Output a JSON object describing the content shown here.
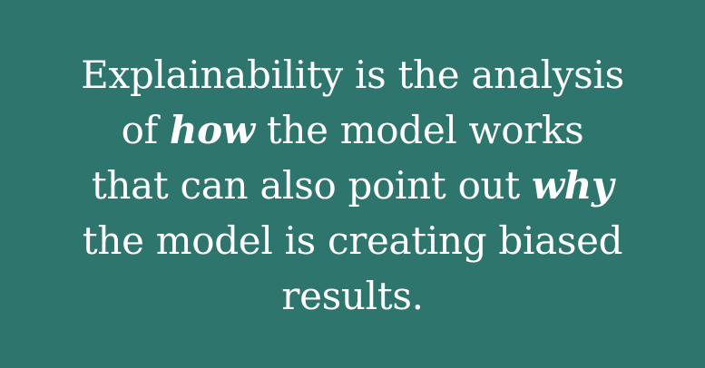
{
  "quote": {
    "line1": "Explainability is the analysis",
    "line2_before": "of ",
    "line2_emphasis": "how",
    "line2_after": " the model works",
    "line3_before": "that can also point out ",
    "line3_emphasis": "why",
    "line4": "the model is creating biased",
    "line5": "results."
  },
  "colors": {
    "background": "#2d756d",
    "text": "#ffffff"
  }
}
